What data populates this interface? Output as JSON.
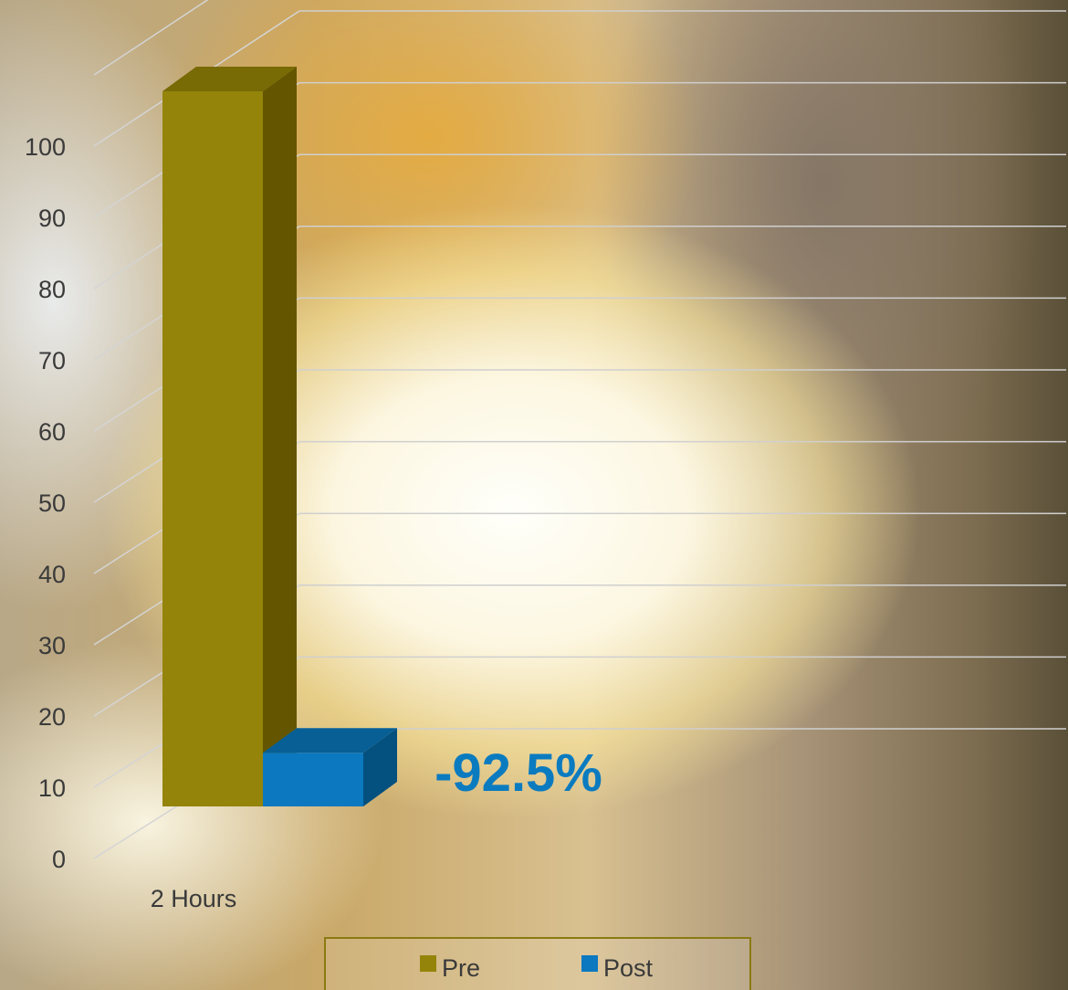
{
  "chart_data": {
    "type": "bar",
    "categories": [
      "2 Hours"
    ],
    "series": [
      {
        "name": "Pre",
        "values": [
          100
        ],
        "color": "#94840a",
        "side_color": "#645600",
        "top_color": "#786a05"
      },
      {
        "name": "Post",
        "values": [
          7.5
        ],
        "color": "#0b78bf",
        "side_color": "#04507e",
        "top_color": "#075f95"
      }
    ],
    "yticks": [
      0,
      10,
      20,
      30,
      40,
      50,
      60,
      70,
      80,
      90,
      100
    ],
    "ylim": [
      0,
      100
    ],
    "annotation": "-92.5%",
    "annotation_color": "#0b7bc0",
    "grid": true,
    "legend_position": "bottom",
    "three_d": true
  }
}
